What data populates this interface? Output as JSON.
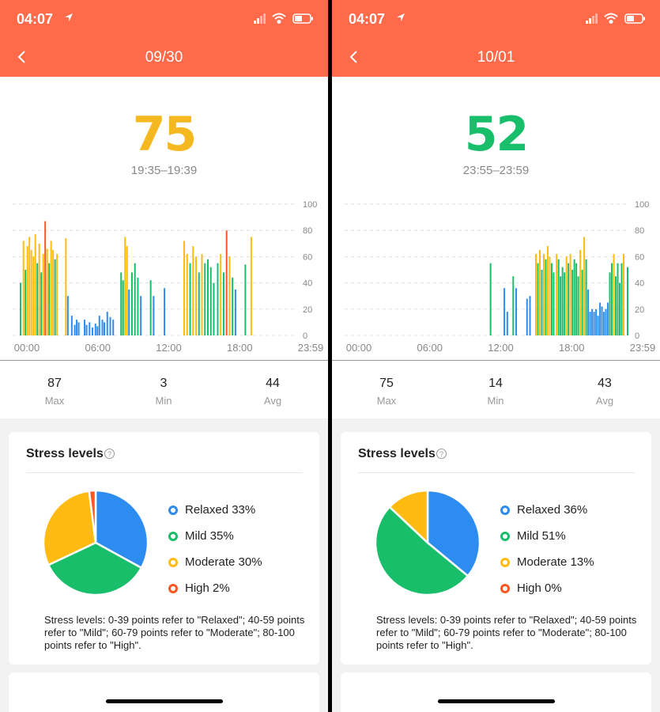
{
  "colors": {
    "header": "#ff6a4a",
    "relaxed": "#2d8cf0",
    "mild": "#19be6b",
    "moderate": "#ffbb11",
    "high": "#ff5722",
    "value_left": "#f5b820",
    "value_right": "#19be6b"
  },
  "status_time": "04:07",
  "left": {
    "date": "09/30",
    "value": "75",
    "time_range": "19:35–19:39",
    "x_ticks": [
      "00:00",
      "06:00",
      "12:00",
      "18:00",
      "23:59"
    ],
    "y_ticks": [
      "100",
      "80",
      "60",
      "40",
      "20",
      "0"
    ],
    "stats": [
      {
        "value": "87",
        "label": "Max"
      },
      {
        "value": "3",
        "label": "Min"
      },
      {
        "value": "44",
        "label": "Avg"
      }
    ],
    "levels_title": "Stress levels",
    "legend": [
      "Relaxed 33%",
      "Mild 35%",
      "Moderate 30%",
      "High 2%"
    ],
    "note": "Stress levels: 0-39 points refer to \"Relaxed\"; 40-59 points refer to \"Mild\"; 60-79 points refer to \"Moderate\"; 80-100 points refer to \"High\"."
  },
  "right": {
    "date": "10/01",
    "value": "52",
    "time_range": "23:55–23:59",
    "x_ticks": [
      "00:00",
      "06:00",
      "12:00",
      "18:00",
      "23:59"
    ],
    "y_ticks": [
      "100",
      "80",
      "60",
      "40",
      "20",
      "0"
    ],
    "stats": [
      {
        "value": "75",
        "label": "Max"
      },
      {
        "value": "14",
        "label": "Min"
      },
      {
        "value": "43",
        "label": "Avg"
      }
    ],
    "levels_title": "Stress levels",
    "legend": [
      "Relaxed 36%",
      "Mild 51%",
      "Moderate 13%",
      "High 0%"
    ],
    "note": "Stress levels: 0-39 points refer to \"Relaxed\"; 40-59 points refer to \"Mild\"; 60-79 points refer to \"Moderate\"; 80-100 points refer to \"High\"."
  },
  "chart_data": [
    {
      "type": "bar",
      "title": "",
      "x_range": [
        "00:00",
        "23:59"
      ],
      "ylim": [
        0,
        100
      ],
      "grid": true,
      "points": [
        {
          "t": "00:40",
          "v": 40
        },
        {
          "t": "00:55",
          "v": 72
        },
        {
          "t": "01:05",
          "v": 50
        },
        {
          "t": "01:15",
          "v": 68
        },
        {
          "t": "01:25",
          "v": 75
        },
        {
          "t": "01:35",
          "v": 65
        },
        {
          "t": "01:45",
          "v": 60
        },
        {
          "t": "01:55",
          "v": 77
        },
        {
          "t": "02:05",
          "v": 55
        },
        {
          "t": "02:15",
          "v": 70
        },
        {
          "t": "02:25",
          "v": 48
        },
        {
          "t": "02:35",
          "v": 62
        },
        {
          "t": "02:45",
          "v": 87
        },
        {
          "t": "02:55",
          "v": 66
        },
        {
          "t": "03:05",
          "v": 55
        },
        {
          "t": "03:15",
          "v": 72
        },
        {
          "t": "03:25",
          "v": 65
        },
        {
          "t": "03:35",
          "v": 58
        },
        {
          "t": "03:45",
          "v": 62
        },
        {
          "t": "04:30",
          "v": 74
        },
        {
          "t": "04:40",
          "v": 30
        },
        {
          "t": "05:00",
          "v": 15
        },
        {
          "t": "05:15",
          "v": 8
        },
        {
          "t": "05:25",
          "v": 12
        },
        {
          "t": "05:35",
          "v": 10
        },
        {
          "t": "06:05",
          "v": 12
        },
        {
          "t": "06:15",
          "v": 8
        },
        {
          "t": "06:30",
          "v": 10
        },
        {
          "t": "06:45",
          "v": 6
        },
        {
          "t": "07:00",
          "v": 9
        },
        {
          "t": "07:10",
          "v": 7
        },
        {
          "t": "07:20",
          "v": 15
        },
        {
          "t": "07:35",
          "v": 12
        },
        {
          "t": "07:45",
          "v": 10
        },
        {
          "t": "08:00",
          "v": 18
        },
        {
          "t": "08:15",
          "v": 14
        },
        {
          "t": "08:30",
          "v": 12
        },
        {
          "t": "09:10",
          "v": 48
        },
        {
          "t": "09:20",
          "v": 42
        },
        {
          "t": "09:30",
          "v": 75
        },
        {
          "t": "09:40",
          "v": 68
        },
        {
          "t": "09:50",
          "v": 35
        },
        {
          "t": "10:05",
          "v": 48
        },
        {
          "t": "10:20",
          "v": 55
        },
        {
          "t": "10:35",
          "v": 44
        },
        {
          "t": "10:50",
          "v": 30
        },
        {
          "t": "11:40",
          "v": 42
        },
        {
          "t": "11:55",
          "v": 30
        },
        {
          "t": "12:50",
          "v": 36
        },
        {
          "t": "14:30",
          "v": 72
        },
        {
          "t": "14:45",
          "v": 62
        },
        {
          "t": "15:00",
          "v": 55
        },
        {
          "t": "15:15",
          "v": 68
        },
        {
          "t": "15:30",
          "v": 60
        },
        {
          "t": "15:45",
          "v": 48
        },
        {
          "t": "16:00",
          "v": 62
        },
        {
          "t": "16:15",
          "v": 55
        },
        {
          "t": "16:30",
          "v": 58
        },
        {
          "t": "16:45",
          "v": 52
        },
        {
          "t": "17:00",
          "v": 40
        },
        {
          "t": "17:20",
          "v": 55
        },
        {
          "t": "17:35",
          "v": 62
        },
        {
          "t": "17:50",
          "v": 48
        },
        {
          "t": "18:05",
          "v": 80
        },
        {
          "t": "18:20",
          "v": 60
        },
        {
          "t": "18:35",
          "v": 44
        },
        {
          "t": "18:50",
          "v": 35
        },
        {
          "t": "19:40",
          "v": 54
        },
        {
          "t": "20:10",
          "v": 75
        }
      ]
    },
    {
      "type": "bar",
      "title": "",
      "x_range": [
        "00:00",
        "23:59"
      ],
      "ylim": [
        0,
        100
      ],
      "grid": true,
      "points": [
        {
          "t": "12:20",
          "v": 55
        },
        {
          "t": "13:30",
          "v": 36
        },
        {
          "t": "13:45",
          "v": 18
        },
        {
          "t": "14:15",
          "v": 45
        },
        {
          "t": "14:30",
          "v": 36
        },
        {
          "t": "15:25",
          "v": 28
        },
        {
          "t": "15:40",
          "v": 30
        },
        {
          "t": "16:10",
          "v": 62
        },
        {
          "t": "16:20",
          "v": 55
        },
        {
          "t": "16:30",
          "v": 65
        },
        {
          "t": "16:40",
          "v": 50
        },
        {
          "t": "16:50",
          "v": 62
        },
        {
          "t": "17:00",
          "v": 58
        },
        {
          "t": "17:10",
          "v": 68
        },
        {
          "t": "17:20",
          "v": 60
        },
        {
          "t": "17:30",
          "v": 55
        },
        {
          "t": "17:40",
          "v": 48
        },
        {
          "t": "17:55",
          "v": 62
        },
        {
          "t": "18:05",
          "v": 58
        },
        {
          "t": "18:15",
          "v": 45
        },
        {
          "t": "18:25",
          "v": 52
        },
        {
          "t": "18:35",
          "v": 48
        },
        {
          "t": "18:45",
          "v": 60
        },
        {
          "t": "18:55",
          "v": 55
        },
        {
          "t": "19:05",
          "v": 62
        },
        {
          "t": "19:15",
          "v": 50
        },
        {
          "t": "19:25",
          "v": 58
        },
        {
          "t": "19:35",
          "v": 55
        },
        {
          "t": "19:45",
          "v": 45
        },
        {
          "t": "19:55",
          "v": 65
        },
        {
          "t": "20:05",
          "v": 50
        },
        {
          "t": "20:15",
          "v": 75
        },
        {
          "t": "20:25",
          "v": 58
        },
        {
          "t": "20:35",
          "v": 35
        },
        {
          "t": "20:45",
          "v": 18
        },
        {
          "t": "20:55",
          "v": 20
        },
        {
          "t": "21:05",
          "v": 18
        },
        {
          "t": "21:15",
          "v": 20
        },
        {
          "t": "21:25",
          "v": 15
        },
        {
          "t": "21:35",
          "v": 25
        },
        {
          "t": "21:45",
          "v": 22
        },
        {
          "t": "21:55",
          "v": 18
        },
        {
          "t": "22:05",
          "v": 20
        },
        {
          "t": "22:15",
          "v": 25
        },
        {
          "t": "22:25",
          "v": 48
        },
        {
          "t": "22:35",
          "v": 55
        },
        {
          "t": "22:45",
          "v": 62
        },
        {
          "t": "22:55",
          "v": 45
        },
        {
          "t": "23:05",
          "v": 55
        },
        {
          "t": "23:15",
          "v": 40
        },
        {
          "t": "23:25",
          "v": 55
        },
        {
          "t": "23:35",
          "v": 62
        },
        {
          "t": "23:55",
          "v": 52
        }
      ]
    },
    {
      "type": "pie",
      "labels": [
        "Relaxed",
        "Mild",
        "Moderate",
        "High"
      ],
      "values": [
        33,
        35,
        30,
        2
      ]
    },
    {
      "type": "pie",
      "labels": [
        "Relaxed",
        "Mild",
        "Moderate",
        "High"
      ],
      "values": [
        36,
        51,
        13,
        0
      ]
    }
  ]
}
